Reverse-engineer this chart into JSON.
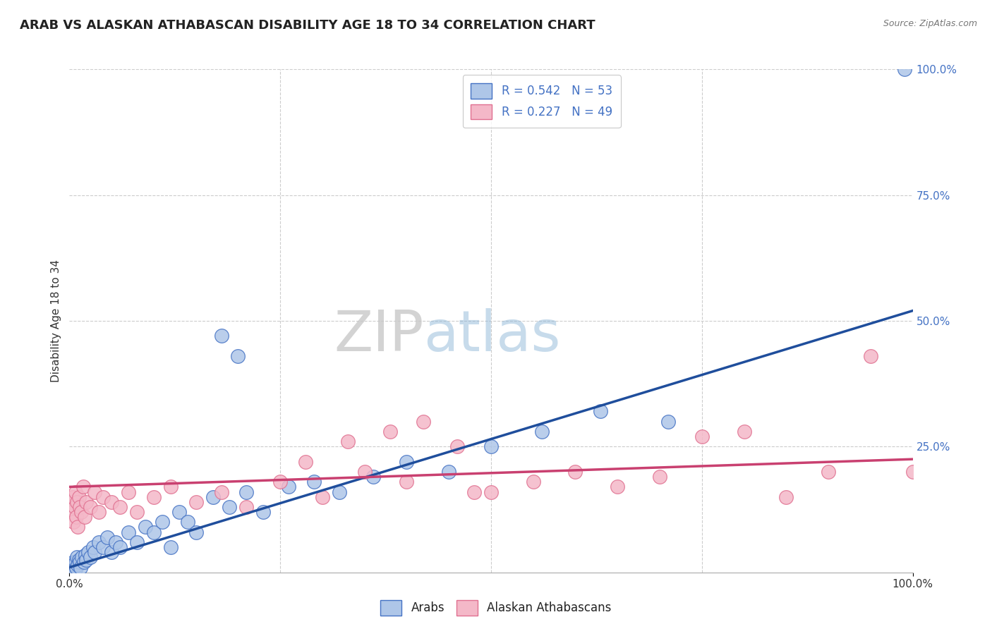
{
  "title": "ARAB VS ALASKAN ATHABASCAN DISABILITY AGE 18 TO 34 CORRELATION CHART",
  "source_text": "Source: ZipAtlas.com",
  "ylabel": "Disability Age 18 to 34",
  "xlim": [
    0,
    100
  ],
  "ylim": [
    0,
    100
  ],
  "arab_color": "#aec6e8",
  "arab_edge_color": "#4472c4",
  "athabascan_color": "#f4b8c8",
  "athabascan_edge_color": "#e07090",
  "arab_line_color": "#1f4e9c",
  "athabascan_line_color": "#c94070",
  "legend_text_color": "#4472c4",
  "arab_R": 0.542,
  "arab_N": 53,
  "athabascan_R": 0.227,
  "athabascan_N": 49,
  "background_color": "#ffffff",
  "grid_color": "#cccccc",
  "title_fontsize": 13,
  "axis_label_fontsize": 11,
  "tick_fontsize": 11,
  "right_tick_color": "#4472c4",
  "arab_line_y0": 1.0,
  "arab_line_y100": 52.0,
  "ath_line_y0": 17.0,
  "ath_line_y100": 22.5,
  "arab_x": [
    0.2,
    0.3,
    0.4,
    0.5,
    0.5,
    0.6,
    0.7,
    0.8,
    0.9,
    1.0,
    1.1,
    1.2,
    1.3,
    1.5,
    1.7,
    1.9,
    2.0,
    2.2,
    2.5,
    2.8,
    3.0,
    3.5,
    4.0,
    4.5,
    5.0,
    5.5,
    6.0,
    7.0,
    8.0,
    9.0,
    10.0,
    11.0,
    12.0,
    13.0,
    14.0,
    15.0,
    17.0,
    19.0,
    21.0,
    23.0,
    26.0,
    29.0,
    32.0,
    36.0,
    40.0,
    45.0,
    50.0,
    56.0,
    63.0,
    71.0,
    99.0,
    18.0,
    20.0
  ],
  "arab_y": [
    1.0,
    1.5,
    0.5,
    2.0,
    1.0,
    1.5,
    2.0,
    1.0,
    3.0,
    1.5,
    2.5,
    2.0,
    1.0,
    3.0,
    2.0,
    3.5,
    2.5,
    4.0,
    3.0,
    5.0,
    4.0,
    6.0,
    5.0,
    7.0,
    4.0,
    6.0,
    5.0,
    8.0,
    6.0,
    9.0,
    8.0,
    10.0,
    5.0,
    12.0,
    10.0,
    8.0,
    15.0,
    13.0,
    16.0,
    12.0,
    17.0,
    18.0,
    16.0,
    19.0,
    22.0,
    20.0,
    25.0,
    28.0,
    32.0,
    30.0,
    100.0,
    47.0,
    43.0
  ],
  "ath_x": [
    0.2,
    0.3,
    0.4,
    0.5,
    0.6,
    0.7,
    0.8,
    0.9,
    1.0,
    1.1,
    1.2,
    1.4,
    1.6,
    1.8,
    2.0,
    2.5,
    3.0,
    3.5,
    4.0,
    5.0,
    6.0,
    7.0,
    8.0,
    10.0,
    12.0,
    15.0,
    18.0,
    21.0,
    25.0,
    30.0,
    35.0,
    38.0,
    42.0,
    46.0,
    50.0,
    55.0,
    60.0,
    65.0,
    70.0,
    75.0,
    80.0,
    85.0,
    90.0,
    95.0,
    100.0,
    28.0,
    33.0,
    40.0,
    48.0
  ],
  "ath_y": [
    14.0,
    12.0,
    15.0,
    10.0,
    13.0,
    16.0,
    11.0,
    14.0,
    9.0,
    15.0,
    13.0,
    12.0,
    17.0,
    11.0,
    14.0,
    13.0,
    16.0,
    12.0,
    15.0,
    14.0,
    13.0,
    16.0,
    12.0,
    15.0,
    17.0,
    14.0,
    16.0,
    13.0,
    18.0,
    15.0,
    20.0,
    28.0,
    30.0,
    25.0,
    16.0,
    18.0,
    20.0,
    17.0,
    19.0,
    27.0,
    28.0,
    15.0,
    20.0,
    43.0,
    20.0,
    22.0,
    26.0,
    18.0,
    16.0
  ]
}
